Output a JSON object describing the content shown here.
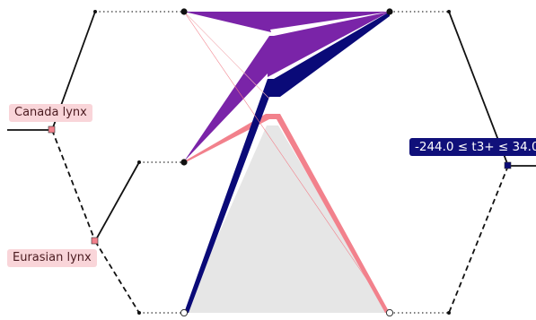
{
  "tree_labels": {
    "canada_lynx": "Canada lynx",
    "eurasian_lynx": "Eurasian lynx"
  },
  "split_condition": "-244.0 ≤ t3+ ≤ 34.0",
  "colors": {
    "purple": "#7a24a8",
    "navy": "#0a0a78",
    "pink": "#f2818c",
    "gray": "#e6e6e6",
    "label_pink_bg": "#f9d5d9",
    "label_navy_bg": "#10107a"
  }
}
